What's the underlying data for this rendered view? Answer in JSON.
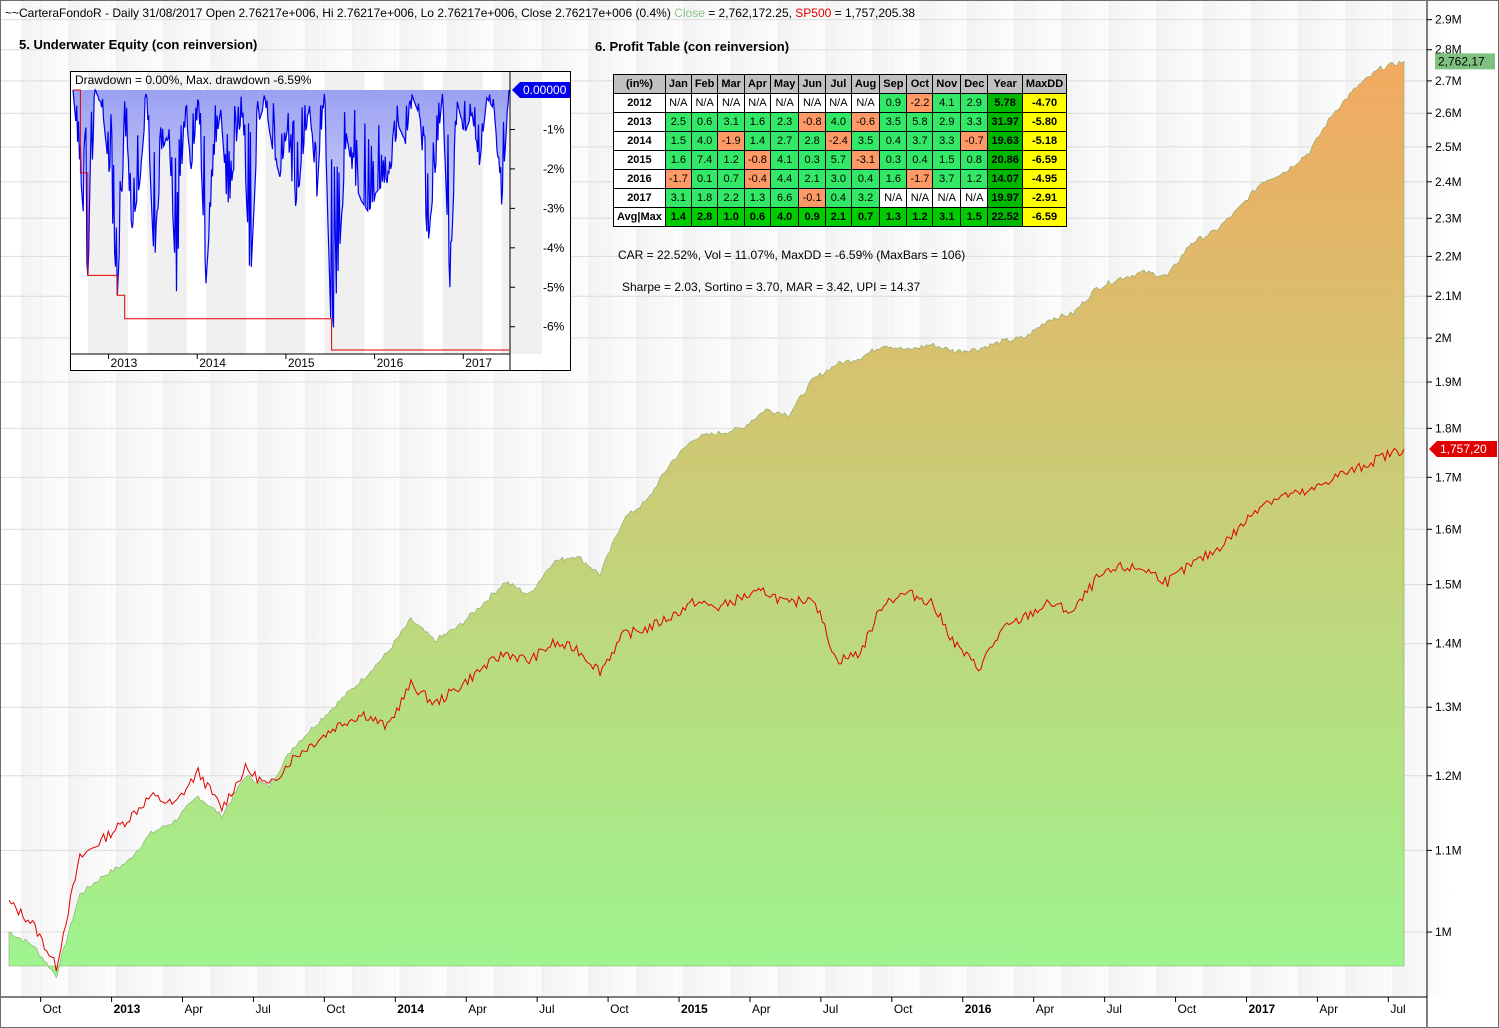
{
  "header": {
    "prefix": "~~CarteraFondoR - Daily 31/08/2017 Open 2.76217e+006, Hi 2.76217e+006, Lo 2.76217e+006, Close 2.76217e+006 (0.4%)",
    "close_label": "Close",
    "close_value": " = 2,762,172.25,",
    "sp_label": "SP500",
    "sp_value": " = 1,757,205.38"
  },
  "colors": {
    "equity_top": "#f2a960",
    "equity_bottom": "#9df58f",
    "sp500": "#e00000",
    "drawdown_line": "#0000ee",
    "drawdown_fill": "#aab0f0",
    "positive_cell": "#33e866",
    "negative_cell": "#ff9966",
    "na_cell": "#ffffff",
    "year_cell": "#00b800",
    "maxdd_cell": "#ffff00"
  },
  "chart_data": [
    {
      "type": "area",
      "title": "",
      "x": [
        "2012-09",
        "2012-10",
        "2012-11",
        "2012-12",
        "2013-01",
        "2013-02",
        "2013-03",
        "2013-04",
        "2013-05",
        "2013-06",
        "2013-07",
        "2013-08",
        "2013-09",
        "2013-10",
        "2013-11",
        "2013-12",
        "2014-01",
        "2014-02",
        "2014-03",
        "2014-04",
        "2014-05",
        "2014-06",
        "2014-07",
        "2014-08",
        "2014-09",
        "2014-10",
        "2014-11",
        "2014-12",
        "2015-01",
        "2015-02",
        "2015-03",
        "2015-04",
        "2015-05",
        "2015-06",
        "2015-07",
        "2015-08",
        "2015-09",
        "2015-10",
        "2015-11",
        "2015-12",
        "2016-01",
        "2016-02",
        "2016-03",
        "2016-04",
        "2016-05",
        "2016-06",
        "2016-07",
        "2016-08",
        "2016-09",
        "2016-10",
        "2016-11",
        "2016-12",
        "2017-01",
        "2017-02",
        "2017-03",
        "2017-04",
        "2017-05",
        "2017-06",
        "2017-07",
        "2017-08"
      ],
      "series": [
        {
          "name": "Close",
          "values": [
            1000000,
            985000,
            950000,
            1045000,
            1068000,
            1085000,
            1122000,
            1138000,
            1172000,
            1145000,
            1200000,
            1185000,
            1240000,
            1275000,
            1310000,
            1345000,
            1385000,
            1440000,
            1405000,
            1428000,
            1465000,
            1505000,
            1482000,
            1540000,
            1552000,
            1518000,
            1620000,
            1655000,
            1730000,
            1780000,
            1790000,
            1800000,
            1840000,
            1830000,
            1905000,
            1940000,
            1955000,
            1985000,
            1972000,
            1985000,
            1970000,
            1975000,
            1992000,
            2002000,
            2045000,
            2058000,
            2120000,
            2145000,
            2160000,
            2150000,
            2235000,
            2265000,
            2325000,
            2400000,
            2430000,
            2485000,
            2600000,
            2680000,
            2740000,
            2762172.25
          ]
        },
        {
          "name": "SP500",
          "values": [
            1035000,
            1010000,
            960000,
            1090000,
            1115000,
            1140000,
            1172000,
            1160000,
            1205000,
            1155000,
            1210000,
            1185000,
            1225000,
            1250000,
            1275000,
            1290000,
            1270000,
            1335000,
            1305000,
            1330000,
            1360000,
            1385000,
            1372000,
            1400000,
            1392000,
            1356000,
            1415000,
            1425000,
            1445000,
            1470000,
            1460000,
            1478000,
            1488000,
            1465000,
            1480000,
            1372000,
            1385000,
            1470000,
            1485000,
            1470000,
            1400000,
            1360000,
            1422000,
            1445000,
            1468000,
            1452000,
            1510000,
            1530000,
            1528000,
            1505000,
            1535000,
            1560000,
            1600000,
            1650000,
            1665000,
            1670000,
            1700000,
            1716000,
            1740000,
            1757205.38
          ]
        }
      ],
      "ylim": [
        950000,
        2950000
      ],
      "y_ticks": [
        "1M",
        "1.1M",
        "1.2M",
        "1.3M",
        "1.4M",
        "1.5M",
        "1.6M",
        "1.7M",
        "1.8M",
        "1.9M",
        "2M",
        "2.1M",
        "2.2M",
        "2.3M",
        "2.4M",
        "2.5M",
        "2.6M",
        "2.7M",
        "2.8M",
        "2.9M"
      ],
      "x_ticks": [
        "Oct",
        "2013",
        "Apr",
        "Jul",
        "Oct",
        "2014",
        "Apr",
        "Jul",
        "Oct",
        "2015",
        "Apr",
        "Jul",
        "Oct",
        "2016",
        "Apr",
        "Jul",
        "Oct",
        "2017",
        "Apr",
        "Jul"
      ],
      "bold_ticks": [
        "2013",
        "2014",
        "2015",
        "2016",
        "2017"
      ],
      "last_labels": {
        "close": "2,762,17",
        "sp500": "1,757,20"
      },
      "scale": "log"
    },
    {
      "type": "line",
      "title": "5. Underwater Equity (con reinversion)",
      "legend_text": "Drawdown = 0.00%,   Max. drawdown -6.59%",
      "x_ticks": [
        "2013",
        "2014",
        "2015",
        "2016",
        "2017"
      ],
      "y_ticks": [
        "-1%",
        "-2%",
        "-3%",
        "-4%",
        "-5%",
        "-6%"
      ],
      "ylim": [
        -6.59,
        0
      ],
      "last_value_label": "0.00000",
      "series": [
        {
          "name": "Drawdown",
          "x": [
            "2012-09",
            "2012-10",
            "2012-11",
            "2012-12",
            "2013-01",
            "2013-02",
            "2013-03",
            "2013-04",
            "2013-05",
            "2013-06",
            "2013-07",
            "2013-08",
            "2013-09",
            "2013-10",
            "2013-11",
            "2013-12",
            "2014-01",
            "2014-02",
            "2014-03",
            "2014-04",
            "2014-05",
            "2014-06",
            "2014-07",
            "2014-08",
            "2014-09",
            "2014-10",
            "2014-11",
            "2014-12",
            "2015-01",
            "2015-02",
            "2015-03",
            "2015-04",
            "2015-05",
            "2015-06",
            "2015-07",
            "2015-08",
            "2015-09",
            "2015-10",
            "2015-11",
            "2015-12",
            "2016-01",
            "2016-02",
            "2016-03",
            "2016-04",
            "2016-05",
            "2016-06",
            "2016-07",
            "2016-08",
            "2016-09",
            "2016-10",
            "2016-11",
            "2016-12",
            "2017-01",
            "2017-02",
            "2017-03",
            "2017-04",
            "2017-05",
            "2017-06",
            "2017-07",
            "2017-08"
          ],
          "values": [
            0,
            -2.1,
            -4.7,
            0,
            -0.5,
            -2.3,
            -5.2,
            -1.0,
            -3.5,
            -2.4,
            -0.2,
            -4.5,
            -1.5,
            -1.2,
            -5.1,
            -0.8,
            -2.0,
            -0.3,
            -4.9,
            -1.8,
            -0.5,
            -3.2,
            -1.4,
            -0.6,
            -5.0,
            -0.9,
            -0.3,
            -1.5,
            -2.2,
            -1.0,
            -3.1,
            -1.8,
            -0.4,
            -2.7,
            -0.1,
            -6.59,
            -4.3,
            -1.1,
            -2.3,
            -2.8,
            -3.1,
            -2.6,
            -2.4,
            -2.0,
            -0.9,
            -1.3,
            -0.2,
            -0.7,
            -4.0,
            -2.1,
            -0.1,
            -5.0,
            -0.3,
            -1.1,
            -0.6,
            -1.9,
            -0.2,
            -0.5,
            -2.9,
            0
          ]
        },
        {
          "name": "Max drawdown",
          "values": [
            0,
            -2.1,
            -4.7,
            -4.7,
            -4.7,
            -4.7,
            -5.2,
            -5.8,
            -5.8,
            -5.8,
            -5.8,
            -5.8,
            -5.8,
            -5.8,
            -5.8,
            -5.8,
            -5.8,
            -5.8,
            -5.8,
            -5.8,
            -5.8,
            -5.8,
            -5.8,
            -5.8,
            -5.8,
            -5.8,
            -5.8,
            -5.8,
            -5.8,
            -5.8,
            -5.8,
            -5.8,
            -5.8,
            -5.8,
            -5.8,
            -6.59,
            -6.59,
            -6.59,
            -6.59,
            -6.59,
            -6.59,
            -6.59,
            -6.59,
            -6.59,
            -6.59,
            -6.59,
            -6.59,
            -6.59,
            -6.59,
            -6.59,
            -6.59,
            -6.59,
            -6.59,
            -6.59,
            -6.59,
            -6.59,
            -6.59,
            -6.59,
            -6.59,
            -6.59
          ]
        }
      ]
    },
    {
      "type": "table",
      "title": "6. Profit Table (con reinversion)",
      "columns": [
        "(in%)",
        "Jan",
        "Feb",
        "Mar",
        "Apr",
        "May",
        "Jun",
        "Jul",
        "Aug",
        "Sep",
        "Oct",
        "Nov",
        "Dec",
        "Year",
        "MaxDD"
      ],
      "rows": [
        [
          "2012",
          "N/A",
          "N/A",
          "N/A",
          "N/A",
          "N/A",
          "N/A",
          "N/A",
          "N/A",
          "0.9",
          "-2.2",
          "4.1",
          "2.9",
          "5.78",
          "-4.70"
        ],
        [
          "2013",
          "2.5",
          "0.6",
          "3.1",
          "1.6",
          "2.3",
          "-0.8",
          "4.0",
          "-0.6",
          "3.5",
          "5.8",
          "2.9",
          "3.3",
          "31.97",
          "-5.80"
        ],
        [
          "2014",
          "1.5",
          "4.0",
          "-1.9",
          "1.4",
          "2.7",
          "2.8",
          "-2.4",
          "3.5",
          "0.4",
          "3.7",
          "3.3",
          "-0.7",
          "19.63",
          "-5.18"
        ],
        [
          "2015",
          "1.6",
          "7.4",
          "1.2",
          "-0.8",
          "4.1",
          "0.3",
          "5.7",
          "-3.1",
          "0.3",
          "0.4",
          "1.5",
          "0.8",
          "20.86",
          "-6.59"
        ],
        [
          "2016",
          "-1.7",
          "0.1",
          "0.7",
          "-0.4",
          "4.4",
          "2.1",
          "3.0",
          "0.4",
          "1.6",
          "-1.7",
          "3.7",
          "1.2",
          "14.07",
          "-4.95"
        ],
        [
          "2017",
          "3.1",
          "1.8",
          "2.2",
          "1.3",
          "6.6",
          "-0.1",
          "0.4",
          "3.2",
          "N/A",
          "N/A",
          "N/A",
          "N/A",
          "19.97",
          "-2.91"
        ],
        [
          "Avg|Max",
          "1.4",
          "2.8",
          "1.0",
          "0.6",
          "4.0",
          "0.9",
          "2.1",
          "0.7",
          "1.3",
          "1.2",
          "3.1",
          "1.5",
          "22.52",
          "-6.59"
        ]
      ]
    }
  ],
  "stats": {
    "line1": "CAR = 22.52%, Vol = 11.07%, MaxDD = -6.59% (MaxBars = 106)",
    "line2": "Sharpe = 2.03, Sortino = 3.70, MAR = 3.42, UPI = 14.37"
  }
}
